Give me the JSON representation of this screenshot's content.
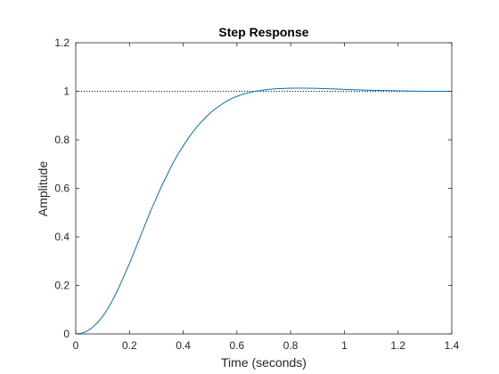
{
  "chart_data": {
    "type": "line",
    "title": "Step Response",
    "xlabel": "Time (seconds)",
    "ylabel": "Amplitude",
    "xlim": [
      0,
      1.4
    ],
    "ylim": [
      0,
      1.2
    ],
    "xticks": [
      0,
      0.2,
      0.4,
      0.6,
      0.8,
      1,
      1.2,
      1.4
    ],
    "xtick_labels": [
      "0",
      "0.2",
      "0.4",
      "0.6",
      "0.8",
      "1",
      "1.2",
      "1.4"
    ],
    "yticks": [
      0,
      0.2,
      0.4,
      0.6,
      0.8,
      1,
      1.2
    ],
    "ytick_labels": [
      "0",
      "0.2",
      "0.4",
      "0.6",
      "0.8",
      "1",
      "1.2"
    ],
    "grid": false,
    "reference_line": {
      "y": 1.0,
      "style": "dotted",
      "color": "#000000"
    },
    "series": [
      {
        "color": "#0072BD",
        "x": [
          0,
          0.02,
          0.04,
          0.06,
          0.08,
          0.1,
          0.12,
          0.14,
          0.16,
          0.18,
          0.2,
          0.22,
          0.24,
          0.26,
          0.28,
          0.3,
          0.32,
          0.34,
          0.36,
          0.38,
          0.4,
          0.42,
          0.44,
          0.46,
          0.48,
          0.5,
          0.52,
          0.54,
          0.56,
          0.58,
          0.6,
          0.62,
          0.64,
          0.66,
          0.68,
          0.7,
          0.72,
          0.74,
          0.76,
          0.78,
          0.8,
          0.85,
          0.9,
          0.95,
          1.0,
          1.05,
          1.1,
          1.15,
          1.2,
          1.25,
          1.3,
          1.35,
          1.4
        ],
        "y": [
          0,
          0.002,
          0.01,
          0.025,
          0.045,
          0.072,
          0.105,
          0.145,
          0.19,
          0.24,
          0.29,
          0.345,
          0.4,
          0.455,
          0.51,
          0.56,
          0.61,
          0.655,
          0.7,
          0.74,
          0.775,
          0.808,
          0.838,
          0.865,
          0.888,
          0.91,
          0.928,
          0.944,
          0.958,
          0.97,
          0.979,
          0.987,
          0.993,
          0.998,
          1.002,
          1.005,
          1.008,
          1.01,
          1.011,
          1.012,
          1.013,
          1.013,
          1.012,
          1.01,
          1.008,
          1.006,
          1.004,
          1.003,
          1.002,
          1.001,
          1.0,
          1.0,
          1.0
        ]
      }
    ]
  }
}
